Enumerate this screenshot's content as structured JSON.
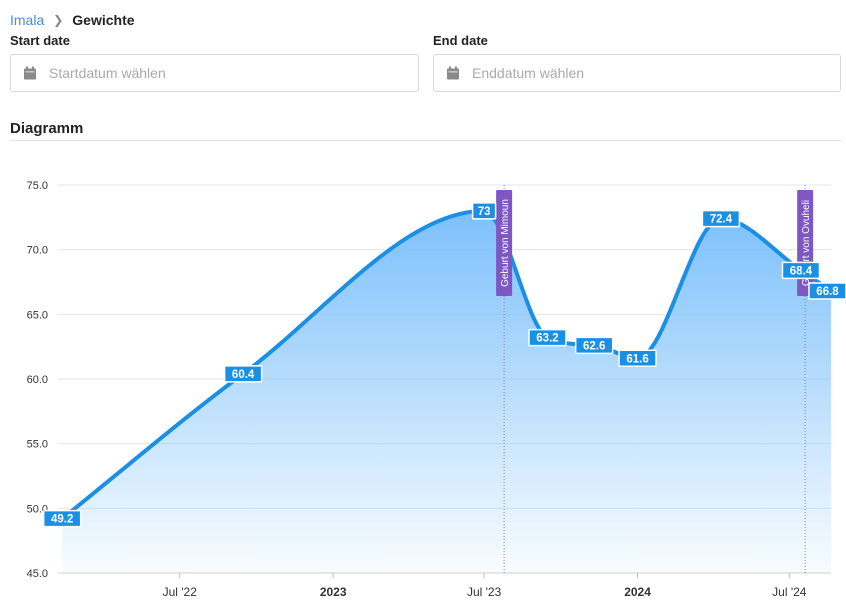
{
  "breadcrumb": {
    "parent": "Imala",
    "current": "Gewichte"
  },
  "filters": {
    "start_label": "Start date",
    "start_placeholder": "Startdatum wählen",
    "end_label": "End date",
    "end_placeholder": "Enddatum wählen"
  },
  "section": {
    "title": "Diagramm"
  },
  "icons": {
    "calendar": "calendar-icon",
    "breadcrumb_separator": "chevron-right-icon"
  },
  "colors": {
    "line": "#1a8fe6",
    "fill_top": "#7cc0fb",
    "label_bg": "#1a8fe6",
    "annotation": "#7e57c2",
    "grid": "#e6e6e6",
    "link": "#4a90c8"
  },
  "chart_data": {
    "type": "area",
    "title": "",
    "xlabel": "",
    "ylabel": "",
    "ylim": [
      45,
      75
    ],
    "xlim": [
      "2022-02-05",
      "2024-08-20"
    ],
    "y_ticks": [
      "45.0",
      "50.0",
      "55.0",
      "60.0",
      "65.0",
      "70.0",
      "75.0"
    ],
    "x_ticks": [
      {
        "label": "Jul '22",
        "date": "2022-07-01",
        "bold": false
      },
      {
        "label": "2023",
        "date": "2023-01-01",
        "bold": true
      },
      {
        "label": "Jul '23",
        "date": "2023-07-01",
        "bold": false
      },
      {
        "label": "2024",
        "date": "2024-01-01",
        "bold": true
      },
      {
        "label": "Jul '24",
        "date": "2024-07-01",
        "bold": false
      }
    ],
    "grid": true,
    "series": [
      {
        "points": [
          {
            "x": "2022-02-10",
            "y": 49.2,
            "label": "49.2"
          },
          {
            "x": "2022-09-15",
            "y": 60.4,
            "label": "60.4"
          },
          {
            "x": "2023-07-01",
            "y": 73,
            "label": "73"
          },
          {
            "x": "2023-09-15",
            "y": 63.2,
            "label": "63.2"
          },
          {
            "x": "2023-11-10",
            "y": 62.6,
            "label": "62.6"
          },
          {
            "x": "2024-01-01",
            "y": 61.6,
            "label": "61.6"
          },
          {
            "x": "2024-04-10",
            "y": 72.4,
            "label": "72.4"
          },
          {
            "x": "2024-07-15",
            "y": 68.4,
            "label": "68.4"
          },
          {
            "x": "2024-08-20",
            "y": 66.8,
            "label": "66.8"
          }
        ]
      }
    ],
    "annotations": [
      {
        "x": "2023-07-25",
        "label": "Geburt von Mimoun"
      },
      {
        "x": "2024-07-20",
        "label": "Geburt von Ovuheli"
      }
    ]
  }
}
